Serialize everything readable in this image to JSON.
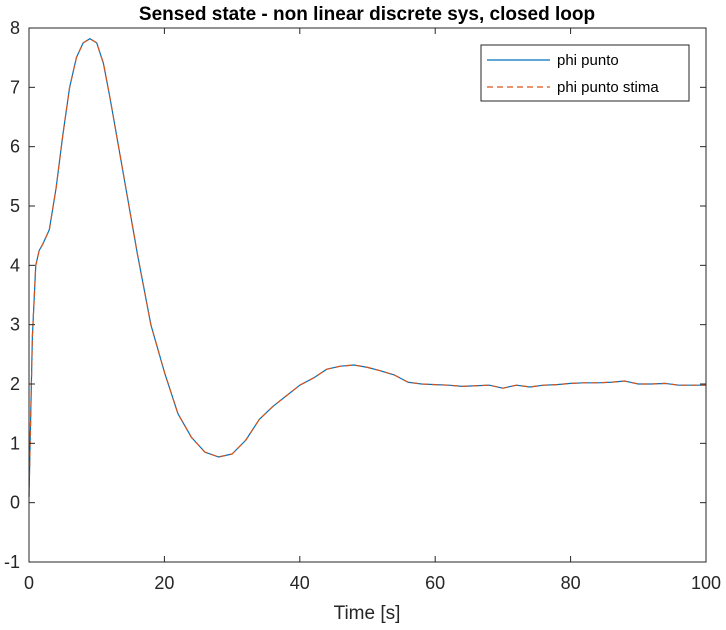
{
  "chart_data": {
    "type": "line",
    "title": "Sensed state - non linear discrete sys, closed loop",
    "xlabel": "Time [s]",
    "ylabel": "",
    "xlim": [
      0,
      100
    ],
    "ylim": [
      -1,
      8
    ],
    "xticks": [
      0,
      20,
      40,
      60,
      80,
      100
    ],
    "yticks": [
      -1,
      0,
      1,
      2,
      3,
      4,
      5,
      6,
      7,
      8
    ],
    "grid": false,
    "legend_position": "top-right",
    "series": [
      {
        "name": "phi punto",
        "color": "#0072BD",
        "style": "solid",
        "x": [
          0,
          0.5,
          1,
          1.5,
          2,
          3,
          4,
          5,
          6,
          7,
          8,
          9,
          10,
          11,
          12,
          14,
          16,
          18,
          20,
          22,
          24,
          26,
          28,
          30,
          32,
          34,
          36,
          38,
          40,
          42,
          44,
          46,
          48,
          50,
          52,
          54,
          56,
          58,
          60,
          62,
          64,
          66,
          68,
          70,
          72,
          74,
          76,
          78,
          80,
          82,
          84,
          86,
          88,
          90,
          92,
          94,
          96,
          98,
          100
        ],
        "y": [
          0.1,
          2.8,
          4.0,
          4.25,
          4.35,
          4.6,
          5.3,
          6.2,
          7.0,
          7.5,
          7.75,
          7.82,
          7.75,
          7.4,
          6.8,
          5.5,
          4.2,
          3.0,
          2.2,
          1.5,
          1.1,
          0.85,
          0.77,
          0.82,
          1.05,
          1.4,
          1.62,
          1.8,
          1.98,
          2.1,
          2.25,
          2.3,
          2.32,
          2.28,
          2.22,
          2.15,
          2.03,
          2.0,
          1.99,
          1.98,
          1.96,
          1.97,
          1.98,
          1.93,
          1.98,
          1.95,
          1.98,
          1.99,
          2.01,
          2.02,
          2.02,
          2.03,
          2.05,
          2.0,
          2.0,
          2.01,
          1.98,
          1.98,
          1.98
        ]
      },
      {
        "name": "phi punto stima",
        "color": "#D95319",
        "style": "dashed",
        "x": [
          0,
          0.5,
          1,
          1.5,
          2,
          3,
          4,
          5,
          6,
          7,
          8,
          9,
          10,
          11,
          12,
          14,
          16,
          18,
          20,
          22,
          24,
          26,
          28,
          30,
          32,
          34,
          36,
          38,
          40,
          42,
          44,
          46,
          48,
          50,
          52,
          54,
          56,
          58,
          60,
          62,
          64,
          66,
          68,
          70,
          72,
          74,
          76,
          78,
          80,
          82,
          84,
          86,
          88,
          90,
          92,
          94,
          96,
          98,
          100
        ],
        "y": [
          0.1,
          2.8,
          4.0,
          4.25,
          4.35,
          4.6,
          5.3,
          6.2,
          7.0,
          7.5,
          7.75,
          7.82,
          7.75,
          7.4,
          6.8,
          5.5,
          4.2,
          3.0,
          2.2,
          1.5,
          1.1,
          0.85,
          0.77,
          0.82,
          1.05,
          1.4,
          1.62,
          1.8,
          1.98,
          2.1,
          2.25,
          2.3,
          2.32,
          2.28,
          2.22,
          2.15,
          2.03,
          2.0,
          1.99,
          1.98,
          1.96,
          1.97,
          1.98,
          1.93,
          1.98,
          1.95,
          1.98,
          1.99,
          2.01,
          2.02,
          2.02,
          2.03,
          2.05,
          2.0,
          2.0,
          2.01,
          1.98,
          1.98,
          1.98
        ]
      }
    ]
  }
}
